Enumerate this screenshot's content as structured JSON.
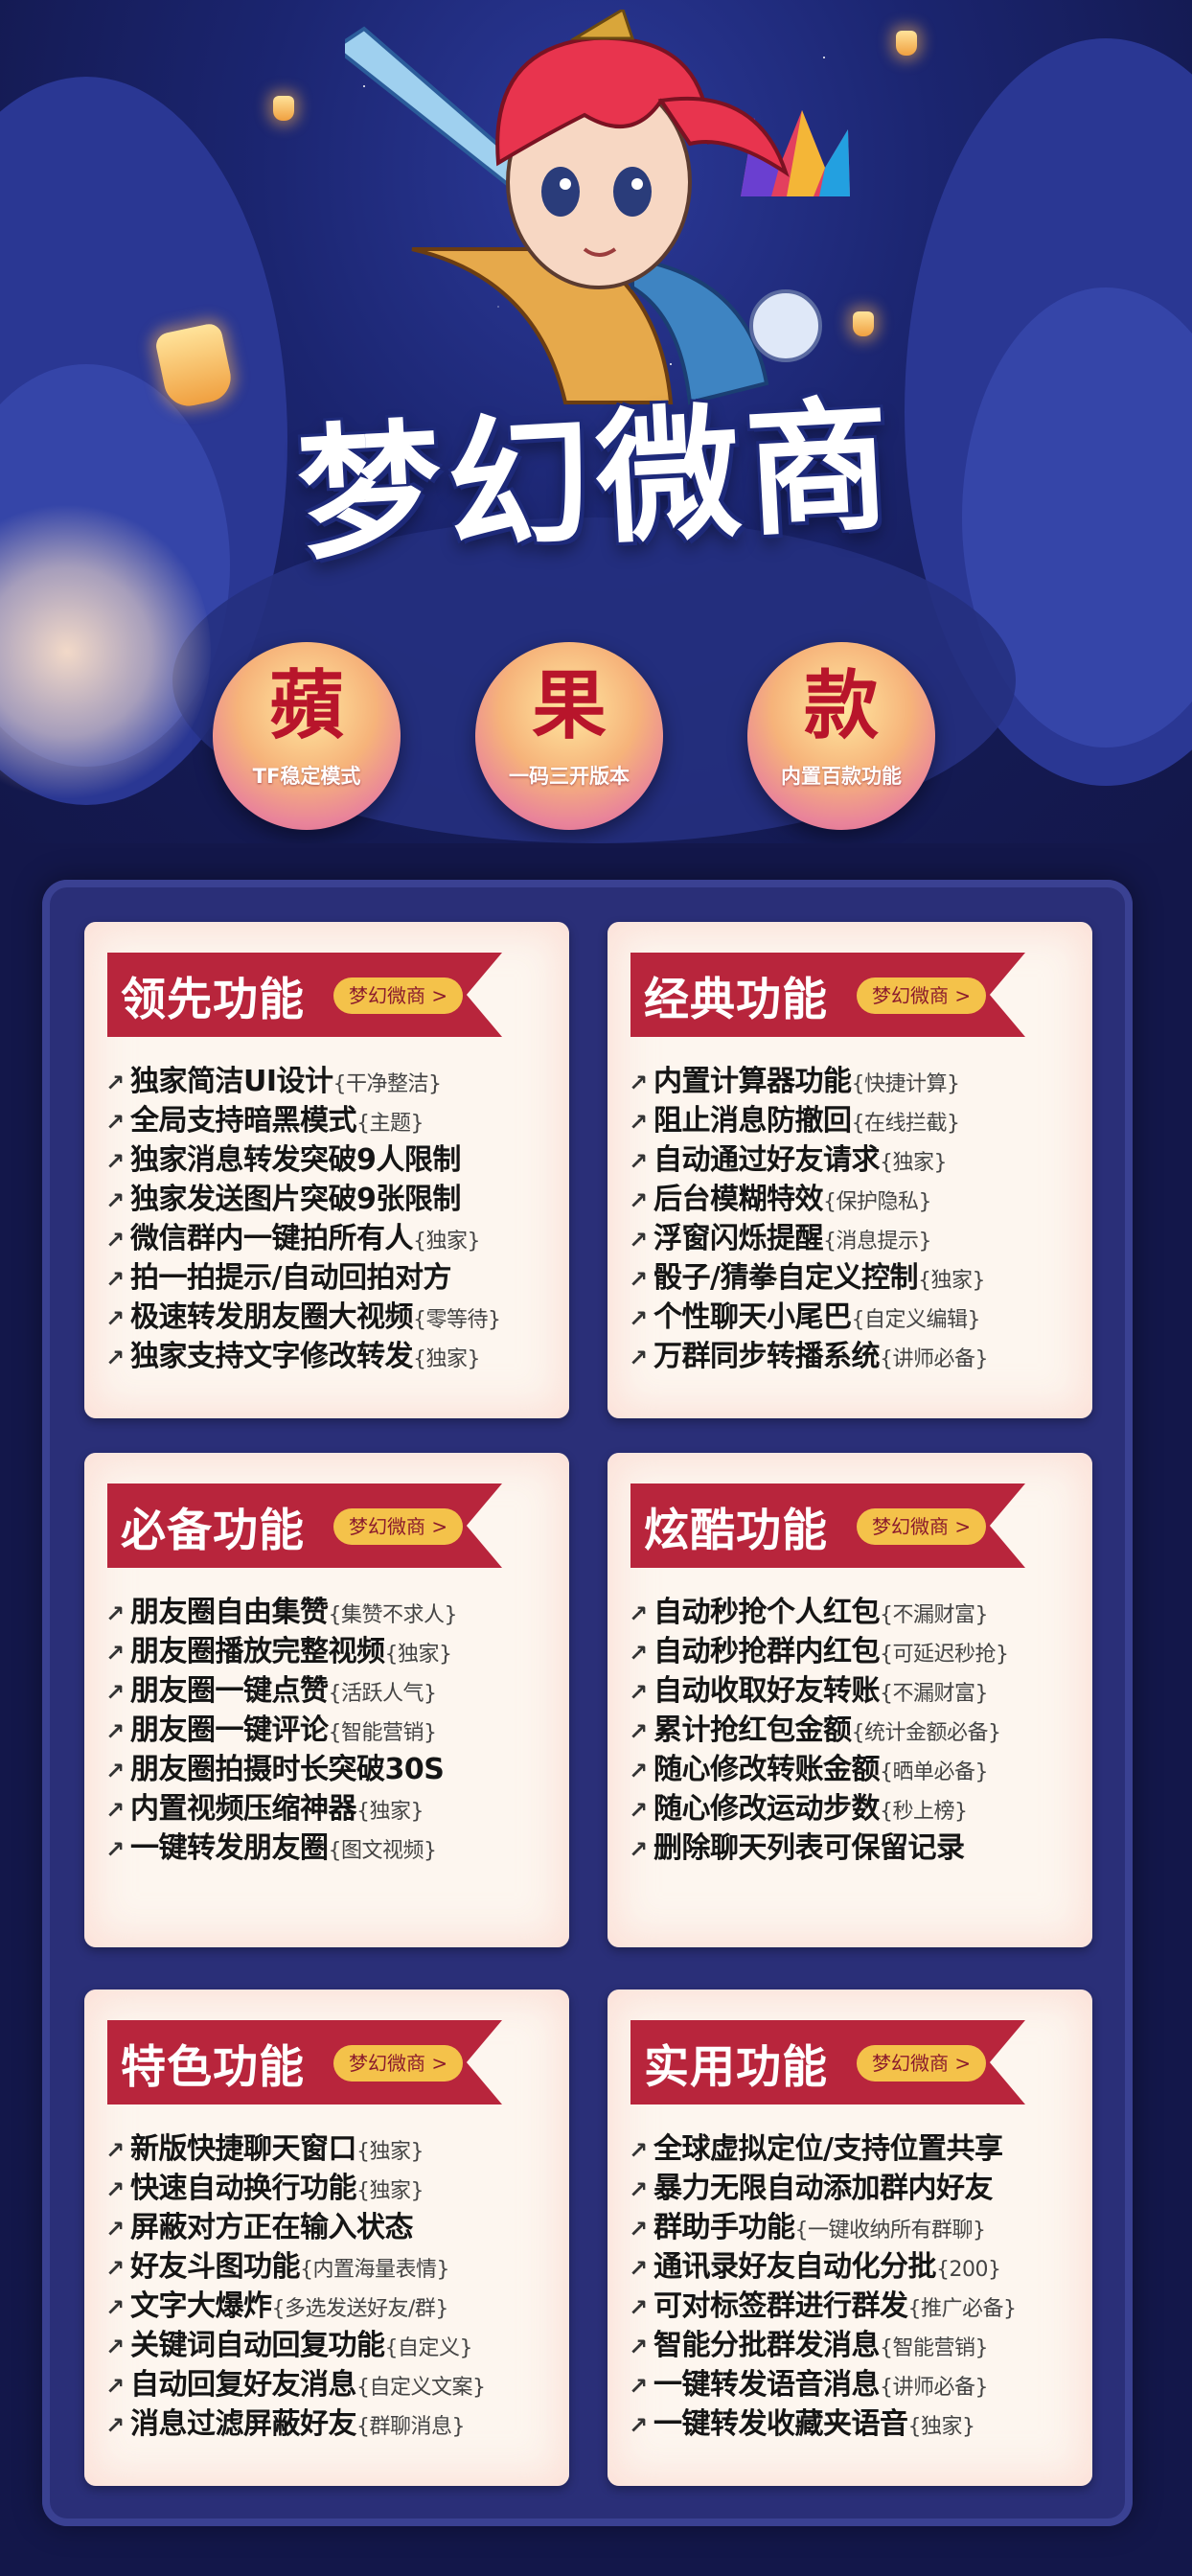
{
  "hero": {
    "title": "梦幻微商",
    "badges": [
      {
        "big": "蘋",
        "small": "TF稳定模式"
      },
      {
        "big": "果",
        "small": "一码三开版本"
      },
      {
        "big": "款",
        "small": "内置百款功能"
      }
    ]
  },
  "pill_label": "梦幻微商 >",
  "cards": [
    {
      "title": "领先功能",
      "items": [
        {
          "main": "独家简洁UI设计",
          "note": "{干净整洁}"
        },
        {
          "main": "全局支持暗黑模式",
          "note": "{主题}"
        },
        {
          "main": "独家消息转发突破9人限制",
          "note": ""
        },
        {
          "main": "独家发送图片突破9张限制",
          "note": ""
        },
        {
          "main": "微信群内一键拍所有人",
          "note": "{独家}"
        },
        {
          "main": "拍一拍提示/自动回拍对方",
          "note": ""
        },
        {
          "main": "极速转发朋友圈大视频",
          "note": "{零等待}"
        },
        {
          "main": "独家支持文字修改转发",
          "note": "{独家}"
        }
      ]
    },
    {
      "title": "经典功能",
      "items": [
        {
          "main": "内置计算器功能",
          "note": "{快捷计算}"
        },
        {
          "main": "阻止消息防撤回",
          "note": "{在线拦截}"
        },
        {
          "main": "自动通过好友请求",
          "note": "{独家}"
        },
        {
          "main": "后台模糊特效",
          "note": "{保护隐私}"
        },
        {
          "main": "浮窗闪烁提醒",
          "note": "{消息提示}"
        },
        {
          "main": "骰子/猜拳自定义控制",
          "note": "{独家}"
        },
        {
          "main": "个性聊天小尾巴",
          "note": "{自定义编辑}"
        },
        {
          "main": "万群同步转播系统",
          "note": "{讲师必备}"
        }
      ]
    },
    {
      "title": "必备功能",
      "items": [
        {
          "main": "朋友圈自由集赞",
          "note": "{集赞不求人}"
        },
        {
          "main": "朋友圈播放完整视频",
          "note": "{独家}"
        },
        {
          "main": "朋友圈一键点赞",
          "note": "{活跃人气}"
        },
        {
          "main": "朋友圈一键评论",
          "note": "{智能营销}"
        },
        {
          "main": "朋友圈拍摄时长突破30S",
          "note": ""
        },
        {
          "main": "内置视频压缩神器",
          "note": "{独家}"
        },
        {
          "main": "一键转发朋友圈",
          "note": "{图文视频}"
        }
      ]
    },
    {
      "title": "炫酷功能",
      "items": [
        {
          "main": "自动秒抢个人红包",
          "note": "{不漏财富}"
        },
        {
          "main": "自动秒抢群内红包",
          "note": "{可延迟秒抢}"
        },
        {
          "main": "自动收取好友转账",
          "note": "{不漏财富}"
        },
        {
          "main": "累计抢红包金额",
          "note": "{统计金额必备}"
        },
        {
          "main": "随心修改转账金额",
          "note": "{晒单必备}"
        },
        {
          "main": "随心修改运动步数",
          "note": "{秒上榜}"
        },
        {
          "main": "删除聊天列表可保留记录",
          "note": ""
        }
      ]
    },
    {
      "title": "特色功能",
      "items": [
        {
          "main": "新版快捷聊天窗口",
          "note": "{独家}"
        },
        {
          "main": "快速自动换行功能",
          "note": "{独家}"
        },
        {
          "main": "屏蔽对方正在输入状态",
          "note": ""
        },
        {
          "main": "好友斗图功能",
          "note": "{内置海量表情}"
        },
        {
          "main": "文字大爆炸",
          "note": "{多选发送好友/群}"
        },
        {
          "main": "关键词自动回复功能",
          "note": "{自定义}"
        },
        {
          "main": "自动回复好友消息",
          "note": "{自定义文案}"
        },
        {
          "main": "消息过滤屏蔽好友",
          "note": "{群聊消息}"
        }
      ]
    },
    {
      "title": "实用功能",
      "items": [
        {
          "main": "全球虚拟定位/支持位置共享",
          "note": ""
        },
        {
          "main": "暴力无限自动添加群内好友",
          "note": ""
        },
        {
          "main": "群助手功能",
          "note": "{一键收纳所有群聊}"
        },
        {
          "main": "通讯录好友自动化分批",
          "note": "{200}"
        },
        {
          "main": "可对标签群进行群发",
          "note": "{推广必备}"
        },
        {
          "main": "智能分批群发消息",
          "note": "{智能营销}"
        },
        {
          "main": "一键转发语音消息",
          "note": "{讲师必备}"
        },
        {
          "main": "一键转发收藏夹语音",
          "note": "{独家}"
        }
      ]
    }
  ]
}
